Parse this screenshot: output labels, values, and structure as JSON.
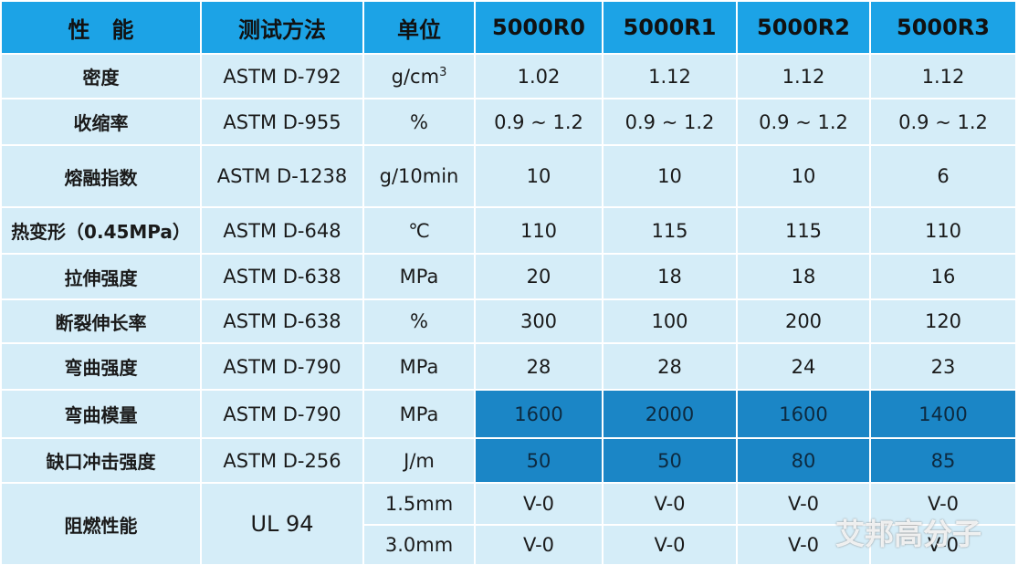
{
  "table": {
    "header": [
      "性　能",
      "测试方法",
      "单位",
      "5000R0",
      "5000R1",
      "5000R2",
      "5000R3"
    ],
    "rows": [
      {
        "cells": [
          "密度",
          "ASTM D-792",
          {
            "text": "g/cm",
            "sup": "3"
          },
          "1.02",
          "1.12",
          "1.12",
          "1.12"
        ]
      },
      {
        "cells": [
          "收缩率",
          "ASTM D-955",
          "%",
          "0.9 ~ 1.2",
          "0.9 ~ 1.2",
          "0.9 ~ 1.2",
          "0.9 ~ 1.2"
        ]
      },
      {
        "cells": [
          "熔融指数",
          "ASTM D-1238",
          "g/10min",
          "10",
          "10",
          "10",
          "6"
        ]
      },
      {
        "cells": [
          "热变形（0.45MPa）",
          "ASTM D-648",
          "℃",
          "110",
          "115",
          "115",
          "110"
        ]
      },
      {
        "cells": [
          "拉伸强度",
          "ASTM D-638",
          "MPa",
          "20",
          "18",
          "18",
          "16"
        ]
      },
      {
        "cells": [
          "断裂伸长率",
          "ASTM D-638",
          "%",
          "300",
          "100",
          "200",
          "120"
        ]
      },
      {
        "cells": [
          "弯曲强度",
          "ASTM D-790",
          "MPa",
          "28",
          "28",
          "24",
          "23"
        ]
      },
      {
        "cells": [
          "弯曲模量",
          "ASTM D-790",
          "MPa",
          "1600",
          "2000",
          "1600",
          "1400"
        ],
        "highlight": true
      },
      {
        "cells": [
          "缺口冲击强度",
          "ASTM D-256",
          "J/m",
          "50",
          "50",
          "80",
          "85"
        ],
        "highlight": true
      }
    ],
    "flame": {
      "label": "阻燃性能",
      "method": "UL 94",
      "sub": [
        [
          "1.5mm",
          "V-0",
          "V-0",
          "V-0",
          "V-0"
        ],
        [
          "3.0mm",
          "V-0",
          "V-0",
          "V-0",
          "V-0"
        ]
      ]
    },
    "watermark": "艾邦高分子"
  }
}
